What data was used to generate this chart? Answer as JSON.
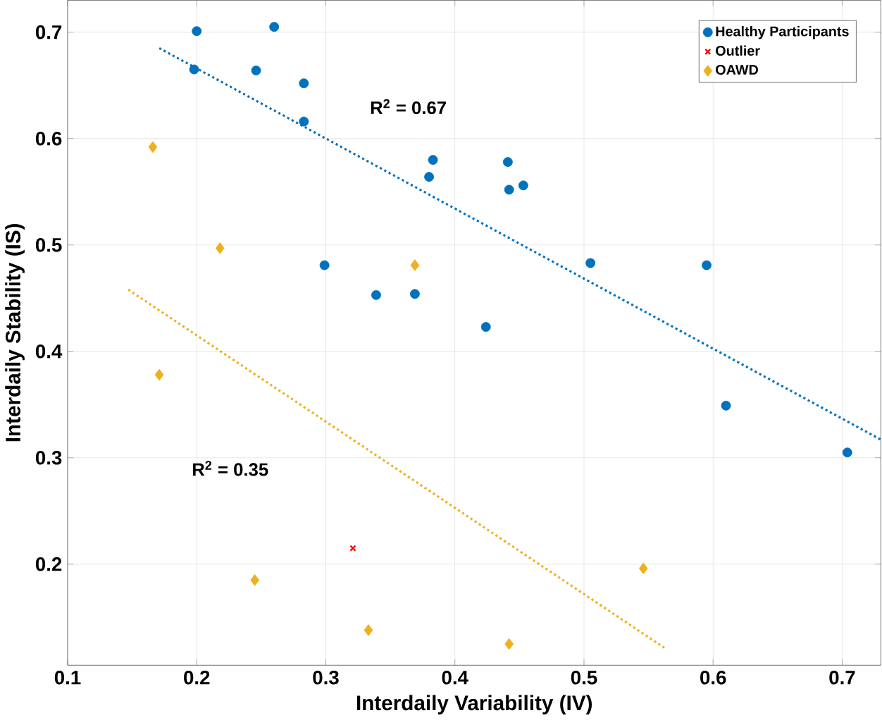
{
  "chart_data": {
    "type": "scatter",
    "xlabel": "Interdaily Variability (IV)",
    "ylabel": "Interdaily Stability (IS)",
    "xlim": [
      0.1,
      0.73
    ],
    "ylim": [
      0.105,
      0.73
    ],
    "xticks": [
      0.1,
      0.2,
      0.3,
      0.4,
      0.5,
      0.6,
      0.7
    ],
    "yticks": [
      0.2,
      0.3,
      0.4,
      0.5,
      0.6,
      0.7
    ],
    "grid": true,
    "legend": "top right",
    "annotations": [
      "R$^{2}$ = 0.67",
      "R$^{2}$ = 0.35"
    ],
    "series": [
      {
        "name": "Healthy Participants",
        "color": "#0072bd",
        "marker": "circle",
        "x": [
          0.2,
          0.26,
          0.198,
          0.246,
          0.283,
          0.283,
          0.383,
          0.38,
          0.299,
          0.339,
          0.369,
          0.424,
          0.441,
          0.442,
          0.453,
          0.505,
          0.595,
          0.61,
          0.704
        ],
        "values": [
          0.701,
          0.705,
          0.665,
          0.664,
          0.652,
          0.616,
          0.58,
          0.564,
          0.481,
          0.453,
          0.454,
          0.423,
          0.578,
          0.552,
          0.556,
          0.483,
          0.481,
          0.349,
          0.305
        ]
      },
      {
        "name": "Outlier",
        "color": "#ff0000",
        "marker": "cross",
        "x": [
          0.321
        ],
        "values": [
          0.215
        ]
      },
      {
        "name": "OAWD",
        "color": "#edb120",
        "marker": "diamond",
        "x": [
          0.166,
          0.218,
          0.369,
          0.171,
          0.245,
          0.333,
          0.442,
          0.546
        ],
        "values": [
          0.592,
          0.497,
          0.481,
          0.378,
          0.185,
          0.138,
          0.125,
          0.196
        ]
      },
      {
        "type": "line",
        "color": "#0072bd",
        "line_style": "dotted",
        "marker": "none",
        "x": [
          0.171,
          0.73
        ],
        "values": [
          0.685,
          0.317
        ]
      },
      {
        "type": "line",
        "color": "#edb120",
        "line_style": "dotted",
        "marker": "none",
        "x": [
          0.147,
          0.564
        ],
        "values": [
          0.458,
          0.12
        ]
      }
    ]
  }
}
